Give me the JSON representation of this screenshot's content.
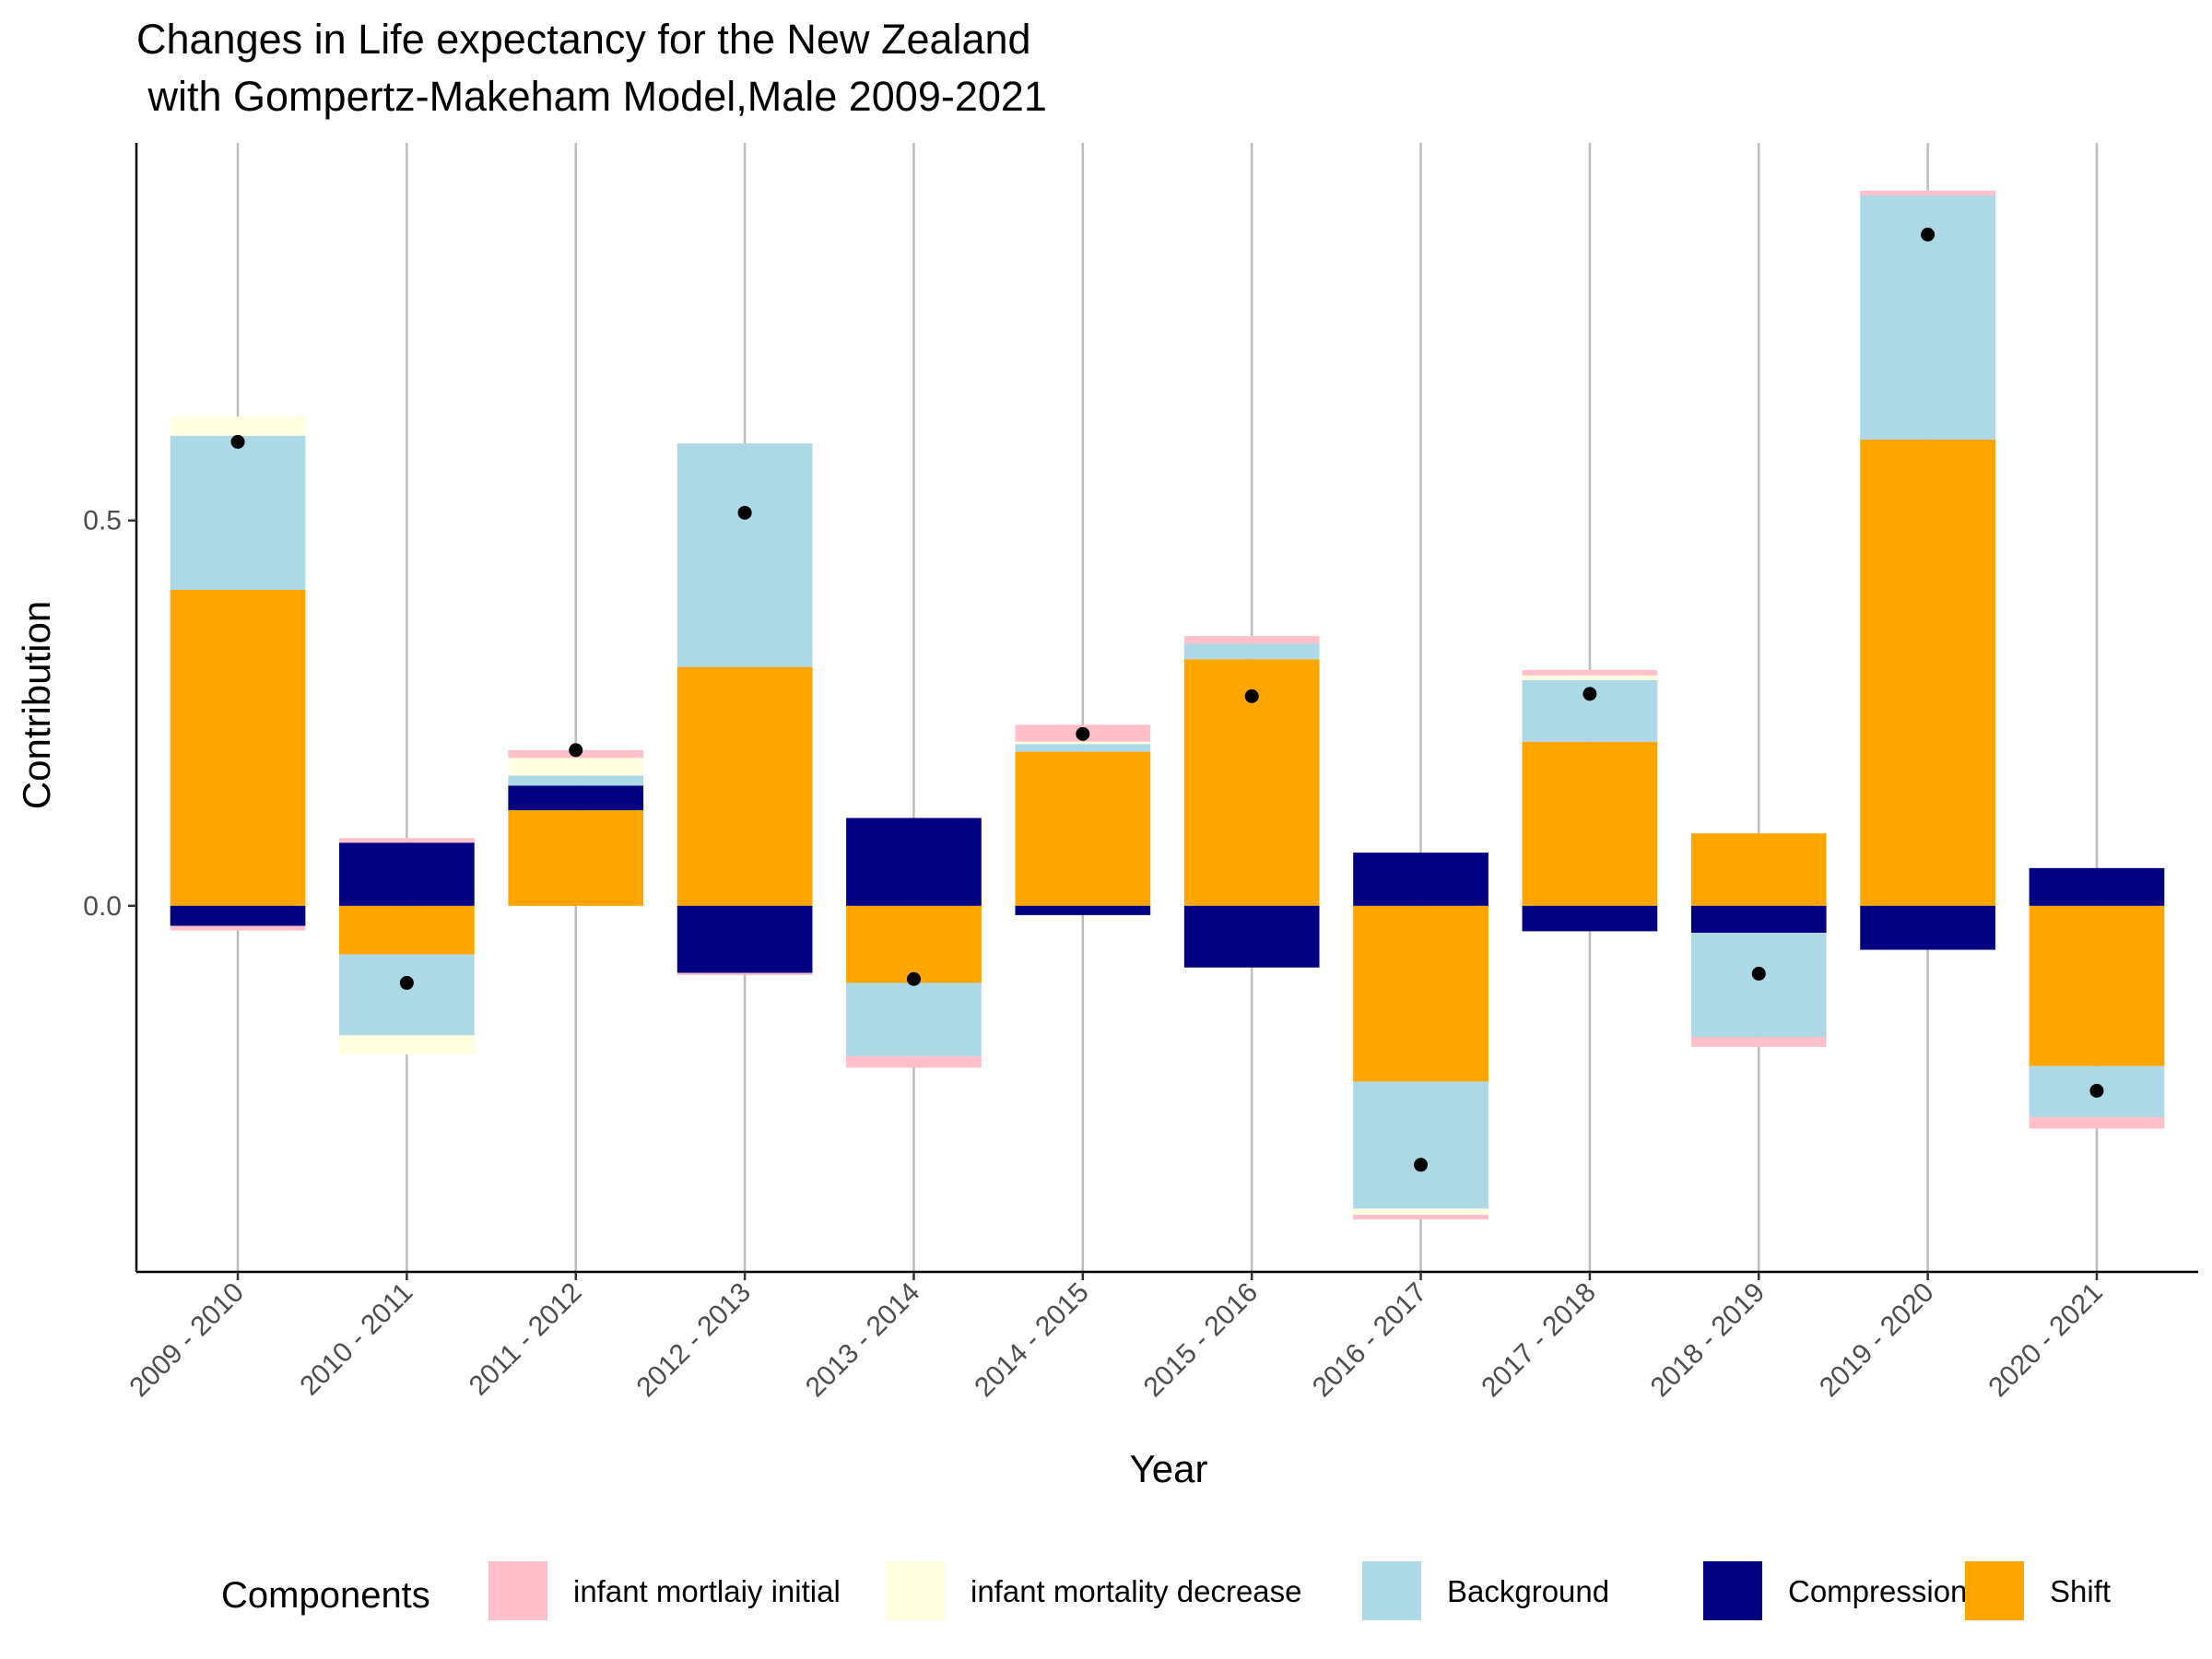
{
  "chart_data": {
    "type": "bar",
    "stacked": true,
    "title_lines": [
      "Changes in Life expectancy for the New Zealand",
      " with Gompertz-Makeham Model,Male 2009-2021"
    ],
    "xlabel": "Year",
    "ylabel": "Contribution",
    "ylim": [
      -0.475,
      0.99
    ],
    "yticks": [
      0.0,
      0.5
    ],
    "ytick_labels": [
      "0.0",
      "0.5"
    ],
    "grid": "vertical-major",
    "legend": {
      "position": "bottom",
      "title": "Components"
    },
    "categories": [
      "2009 - 2010",
      "2010 - 2011",
      "2011 - 2012",
      "2012 - 2013",
      "2013 - 2014",
      "2014 - 2015",
      "2015 - 2016",
      "2016 - 2017",
      "2017 - 2018",
      "2018 - 2019",
      "2019 - 2020",
      "2020 - 2021"
    ],
    "series": [
      {
        "name": "Shift",
        "color": "#FFA500",
        "values": [
          0.41,
          -0.063,
          0.124,
          0.31,
          -0.1,
          0.2,
          0.32,
          -0.228,
          0.213,
          0.094,
          0.605,
          -0.208
        ]
      },
      {
        "name": "Compression",
        "color": "#000080",
        "values": [
          -0.026,
          0.082,
          0.032,
          -0.087,
          0.114,
          -0.012,
          -0.08,
          0.069,
          -0.033,
          -0.035,
          -0.057,
          0.049
        ]
      },
      {
        "name": "Background",
        "color": "#ADD8E6",
        "values": [
          0.2,
          -0.105,
          0.013,
          0.29,
          -0.095,
          0.01,
          0.02,
          -0.165,
          0.08,
          -0.135,
          0.317,
          -0.066
        ]
      },
      {
        "name": "infant mortality decrease",
        "color": "#FFFFE0",
        "values": [
          0.025,
          -0.025,
          0.023,
          0.0,
          0.0,
          0.003,
          0.0,
          -0.008,
          0.006,
          0.0,
          0.0,
          0.0
        ]
      },
      {
        "name": "infant mortlaiy initial",
        "color": "#FFC0CB",
        "values": [
          -0.006,
          0.006,
          0.01,
          -0.003,
          -0.015,
          0.022,
          0.01,
          -0.006,
          0.007,
          -0.013,
          0.006,
          -0.015
        ]
      }
    ],
    "points": {
      "name": "Total",
      "color": "#000000",
      "values": [
        0.602,
        -0.1,
        0.202,
        0.51,
        -0.095,
        0.223,
        0.272,
        -0.336,
        0.275,
        -0.088,
        0.871,
        -0.24
      ]
    },
    "legend_order": [
      {
        "name": "infant mortlaiy initial",
        "color": "#FFC0CB"
      },
      {
        "name": "infant mortality decrease",
        "color": "#FFFFE0"
      },
      {
        "name": "Background",
        "color": "#ADD8E6"
      },
      {
        "name": "Compression",
        "color": "#000080"
      },
      {
        "name": "Shift",
        "color": "#FFA500"
      }
    ]
  }
}
